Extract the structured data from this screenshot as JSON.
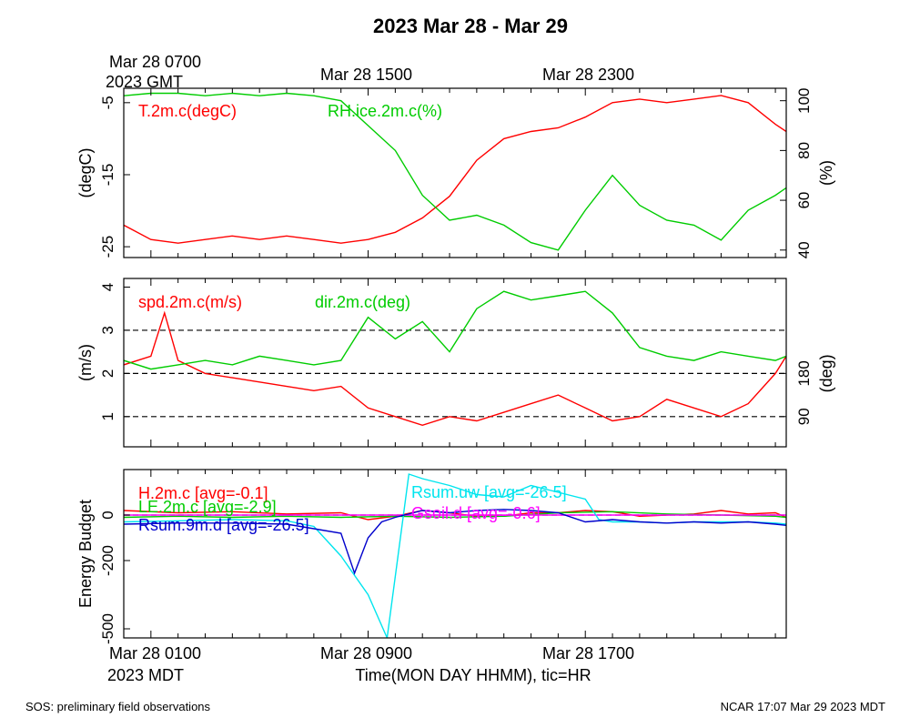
{
  "title": "2023 Mar 28 - Mar 29",
  "footer": {
    "left": "SOS: preliminary field observations",
    "right": "NCAR 17:07 Mar 29 2023 MDT"
  },
  "top_time_axis": {
    "first_label_line1": "Mar 28 0700",
    "first_label_line2": "2023 GMT",
    "labels": [
      "Mar 28 1500",
      "Mar 28 2300"
    ]
  },
  "bottom_time_axis": {
    "first_label_line1": "Mar 28 0100",
    "first_label_line2": "2023 MDT",
    "labels": [
      "Mar 28 0900",
      "Mar 28 1700"
    ],
    "xlabel": "Time(MON DAY HHMM), tic=HR"
  },
  "chart_data": [
    {
      "type": "line",
      "panel": "temperature-humidity",
      "x_unit": "hours since Mar 28 0000 MDT",
      "xlim": [
        0,
        24.4
      ],
      "ylabel": "(degC)",
      "ylim": [
        -26.5,
        -3
      ],
      "yticks": [
        -25,
        -15,
        -5
      ],
      "ylabel_right": "(%)",
      "ylim_right": [
        37,
        105
      ],
      "yticks_right": [
        40,
        60,
        80,
        100
      ],
      "series": [
        {
          "name": "T.2m.c(degC)",
          "color": "#ff0000",
          "axis": "left",
          "x": [
            0,
            1,
            2,
            3,
            4,
            5,
            6,
            7,
            8,
            9,
            10,
            11,
            12,
            13,
            14,
            15,
            16,
            17,
            18,
            19,
            20,
            21,
            22,
            23,
            24,
            24.4
          ],
          "y": [
            -22,
            -24,
            -24.5,
            -24,
            -23.5,
            -24,
            -23.5,
            -24,
            -24.5,
            -24,
            -23,
            -21,
            -18,
            -13,
            -10,
            -9,
            -8.5,
            -7,
            -5,
            -4.5,
            -5,
            -4.5,
            -4,
            -5,
            -8,
            -9
          ]
        },
        {
          "name": "RH.ice.2m.c(%)",
          "color": "#00cc00",
          "axis": "right",
          "x": [
            0,
            1,
            2,
            3,
            4,
            5,
            6,
            7,
            8,
            9,
            10,
            11,
            12,
            13,
            14,
            15,
            16,
            17,
            18,
            19,
            20,
            21,
            22,
            23,
            24,
            24.4
          ],
          "y": [
            102,
            103,
            103,
            102,
            103,
            102,
            103,
            102,
            100,
            90,
            80,
            62,
            52,
            54,
            50,
            43,
            40,
            56,
            70,
            58,
            52,
            50,
            44,
            56,
            62,
            65
          ]
        }
      ]
    },
    {
      "type": "line",
      "panel": "wind",
      "x_unit": "hours since Mar 28 0000 MDT",
      "xlim": [
        0,
        24.4
      ],
      "ylabel": "(m/s)",
      "ylim": [
        0.3,
        4.2
      ],
      "yticks": [
        1,
        2,
        3,
        4
      ],
      "ylabel_right": "(deg)",
      "yticks_right": [
        90,
        180
      ],
      "reference_lines": [
        1,
        2,
        3
      ],
      "series": [
        {
          "name": "spd.2m.c(m/s)",
          "color": "#ff0000",
          "axis": "left",
          "x": [
            0,
            1,
            1.5,
            2,
            3,
            4,
            5,
            6,
            7,
            8,
            9,
            10,
            11,
            12,
            13,
            14,
            15,
            16,
            17,
            18,
            19,
            20,
            21,
            22,
            23,
            24,
            24.4
          ],
          "y": [
            2.2,
            2.4,
            3.4,
            2.3,
            2.0,
            1.9,
            1.8,
            1.7,
            1.6,
            1.7,
            1.2,
            1.0,
            0.8,
            1.0,
            0.9,
            1.1,
            1.3,
            1.5,
            1.2,
            0.9,
            1.0,
            1.4,
            1.2,
            1.0,
            1.3,
            2.0,
            2.4
          ]
        },
        {
          "name": "dir.2m.c(deg)",
          "color": "#00cc00",
          "axis": "left",
          "x": [
            0,
            1,
            2,
            3,
            4,
            5,
            6,
            7,
            8,
            9,
            10,
            11,
            12,
            13,
            14,
            15,
            16,
            17,
            18,
            19,
            20,
            21,
            22,
            23,
            24,
            24.4
          ],
          "y": [
            2.3,
            2.1,
            2.2,
            2.3,
            2.2,
            2.4,
            2.3,
            2.2,
            2.3,
            3.3,
            2.8,
            3.2,
            2.5,
            3.5,
            3.9,
            3.7,
            3.8,
            3.9,
            3.4,
            2.6,
            2.4,
            2.3,
            2.5,
            2.4,
            2.3,
            2.4
          ]
        }
      ]
    },
    {
      "type": "line",
      "panel": "energy-budget",
      "x_unit": "hours since Mar 28 0000 MDT",
      "xlim": [
        0,
        24.4
      ],
      "ylabel": "Energy Budget",
      "ylim": [
        -540,
        200
      ],
      "yticks": [
        -500,
        -200,
        0
      ],
      "reference_lines": [
        0
      ],
      "series": [
        {
          "name": "H.2m.c [avg=-0.1]",
          "color": "#ff0000",
          "x": [
            0,
            2,
            4,
            6,
            8,
            9,
            10,
            11,
            12,
            13,
            14,
            15,
            16,
            17,
            18,
            19,
            20,
            21,
            22,
            23,
            24,
            24.4
          ],
          "y": [
            20,
            10,
            15,
            5,
            10,
            -20,
            -5,
            20,
            10,
            -5,
            -5,
            10,
            10,
            20,
            15,
            -5,
            0,
            5,
            20,
            5,
            10,
            -10
          ]
        },
        {
          "name": "LE.2m.c [avg=-2.9]",
          "color": "#00cc00",
          "x": [
            0,
            2,
            4,
            6,
            8,
            10,
            12,
            14,
            16,
            18,
            20,
            22,
            24,
            24.4
          ],
          "y": [
            -10,
            -5,
            -10,
            -5,
            -10,
            -5,
            -10,
            -5,
            10,
            15,
            5,
            0,
            -5,
            -10
          ]
        },
        {
          "name": "Gsoil.d [avg=-0.6]",
          "color": "#ff00ff",
          "x": [
            0,
            4,
            8,
            12,
            16,
            20,
            24,
            24.4
          ],
          "y": [
            0,
            0,
            0,
            0,
            0,
            0,
            0,
            0
          ]
        },
        {
          "name": "Rsum.uw [avg=-26.5]",
          "color": "#00e5ee",
          "x": [
            0,
            2,
            4,
            6,
            7,
            8,
            9,
            9.7,
            10.5,
            11,
            12,
            13,
            14,
            15,
            16,
            17,
            17.5,
            18,
            19,
            20,
            21,
            22,
            23,
            24,
            24.4
          ],
          "y": [
            -30,
            -25,
            -20,
            -25,
            -50,
            -180,
            -350,
            -540,
            180,
            160,
            130,
            90,
            80,
            130,
            100,
            70,
            -20,
            -30,
            -30,
            -35,
            -30,
            -30,
            -30,
            -35,
            -40
          ]
        },
        {
          "name": "Rsum.9m.d [avg=-26.5]",
          "color": "#0000cc",
          "x": [
            0,
            2,
            4,
            6,
            7,
            8,
            8.5,
            9,
            9.5,
            10,
            11,
            12,
            13,
            14,
            15,
            16,
            17,
            18,
            19,
            20,
            21,
            22,
            23,
            24,
            24.4
          ],
          "y": [
            -40,
            -35,
            -35,
            -40,
            -60,
            -80,
            -255,
            -100,
            -30,
            -10,
            20,
            10,
            20,
            25,
            20,
            10,
            -30,
            -20,
            -30,
            -35,
            -30,
            -35,
            -30,
            -40,
            -45
          ]
        }
      ]
    }
  ]
}
